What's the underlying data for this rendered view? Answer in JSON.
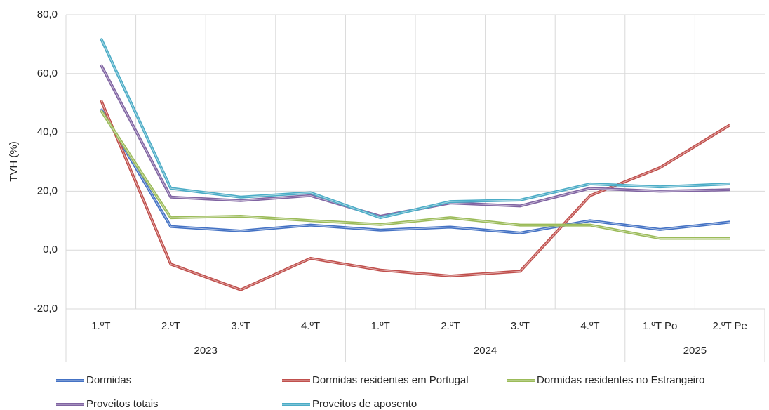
{
  "chart_data": {
    "type": "line",
    "ylabel": "TVH (%)",
    "groups": [
      {
        "label": "2023",
        "categories": [
          "1.ºT",
          "2.ºT",
          "3.ºT",
          "4.ºT"
        ]
      },
      {
        "label": "2024",
        "categories": [
          "1.ºT",
          "2.ºT",
          "3.ºT",
          "4.ºT"
        ]
      },
      {
        "label": "2025",
        "categories": [
          "1.ºT Po",
          "2.ºT Pe"
        ]
      }
    ],
    "series": [
      {
        "name": "Dormidas",
        "color": "#4472c4",
        "values": [
          48,
          8,
          6.5,
          8.5,
          6.8,
          7.8,
          5.8,
          10,
          7,
          9.5
        ]
      },
      {
        "name": "Dormidas residentes em Portugal",
        "color": "#c0504d",
        "values": [
          51,
          -4.8,
          -13.5,
          -2.8,
          -6.8,
          -8.8,
          -7.2,
          18.5,
          28,
          42.5
        ]
      },
      {
        "name": "Dormidas residentes no Estrangeiro",
        "color": "#9bbb59",
        "values": [
          47.5,
          11,
          11.5,
          10,
          8.7,
          11,
          8.5,
          8.5,
          4,
          4
        ]
      },
      {
        "name": "Proveitos totais",
        "color": "#8064a2",
        "values": [
          63,
          18,
          16.8,
          18.5,
          11.5,
          16,
          15,
          21,
          20,
          20.5
        ]
      },
      {
        "name": "Proveitos de aposento",
        "color": "#4bacc6",
        "values": [
          72,
          21,
          18,
          19.5,
          11,
          16.5,
          17,
          22.5,
          21.5,
          22.5
        ]
      }
    ],
    "ylim": [
      -20,
      80
    ],
    "yticks": [
      {
        "value": -20,
        "label": "-20,0"
      },
      {
        "value": 0,
        "label": "0,0"
      },
      {
        "value": 20,
        "label": "20,0"
      },
      {
        "value": 40,
        "label": "40,0"
      },
      {
        "value": 60,
        "label": "60,0"
      },
      {
        "value": 80,
        "label": "80,0"
      }
    ],
    "grid": true
  }
}
